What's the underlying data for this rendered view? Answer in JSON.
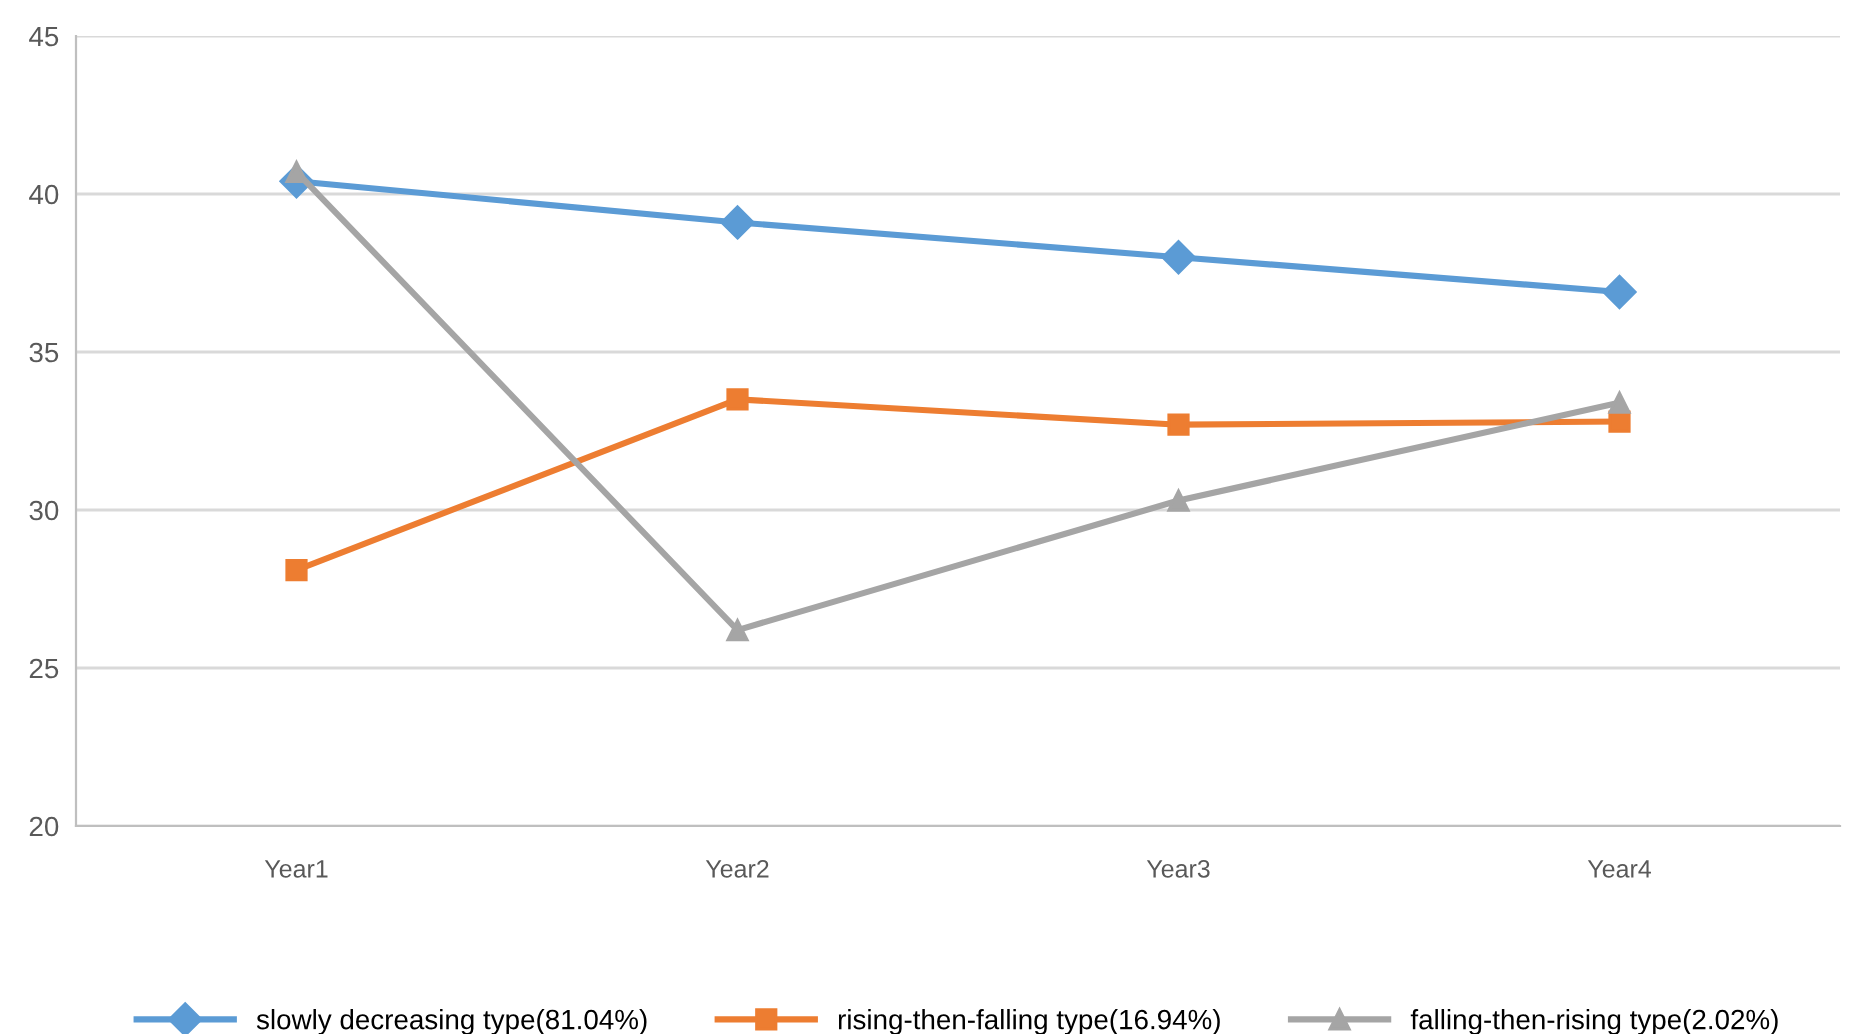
{
  "chart_data": {
    "type": "line",
    "categories": [
      "Year1",
      "Year2",
      "Year3",
      "Year4"
    ],
    "series": [
      {
        "name": "slowly decreasing type(81.04%)",
        "color": "#5b9bd5",
        "marker": "diamond",
        "values": [
          40.4,
          39.1,
          38.0,
          36.9
        ]
      },
      {
        "name": "rising-then-falling type(16.94%)",
        "color": "#ed7d31",
        "marker": "square",
        "values": [
          28.1,
          33.5,
          32.7,
          32.8
        ]
      },
      {
        "name": "falling-then-rising type(2.02%)",
        "color": "#a5a5a5",
        "marker": "triangle",
        "values": [
          40.7,
          26.2,
          30.3,
          33.4
        ]
      }
    ],
    "ylim": [
      20,
      45
    ],
    "yticks": [
      20,
      25,
      30,
      35,
      40,
      45
    ],
    "grid": "y",
    "legend": "bottom",
    "line_style": "solid"
  }
}
